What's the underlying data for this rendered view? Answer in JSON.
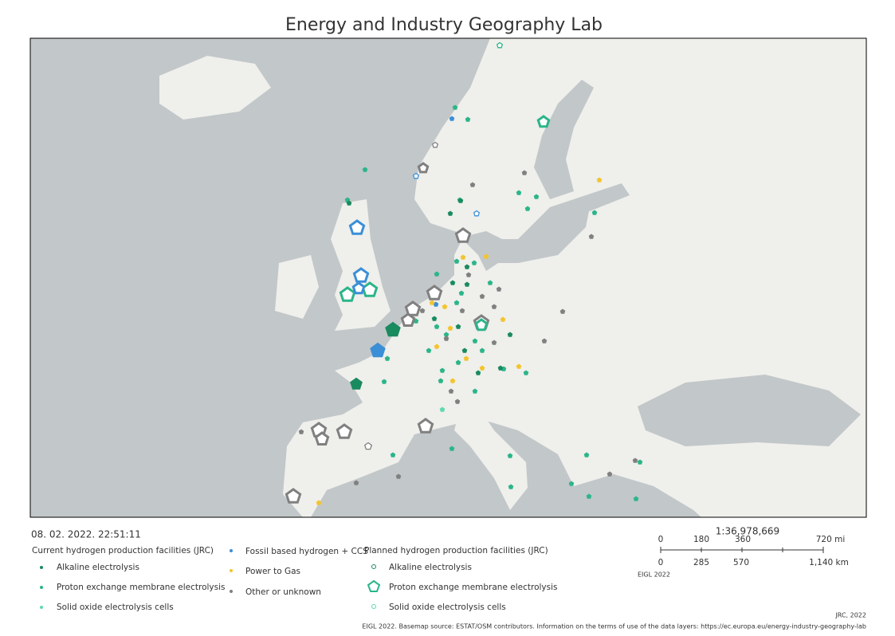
{
  "header": {
    "title": "Energy and Industry Geography Lab"
  },
  "timestamp": "08. 02. 2022. 22:51:11",
  "legend": {
    "current": {
      "title": "Current hydrogen production facilities (JRC)",
      "items": [
        "Alkaline electrolysis",
        "Proton exchange membrane electrolysis",
        "Solid oxide electrolysis cells"
      ]
    },
    "other": {
      "items": [
        "Fossil based hydrogen + CCS",
        "Power to Gas",
        "Other or unknown"
      ]
    },
    "planned": {
      "title": "Planned hydrogen production facilities (JRC)",
      "items": [
        "Alkaline electrolysis",
        "Proton exchange membrane electrolysis",
        "Solid oxide electrolysis cells"
      ]
    }
  },
  "scale": {
    "ratio": "1:36,978,669",
    "miles": [
      "0",
      "180",
      "360",
      "720 mi"
    ],
    "km": [
      "0",
      "285",
      "570",
      "1,140 km"
    ],
    "credit": "EIGL 2022"
  },
  "copyright": "JRC, 2022",
  "footer": "EIGL 2022. Basemap source: ESTAT/OSM contributors. Information on the terms of use of the data layers: https://ec.europa.eu/energy-industry-geography-lab"
}
